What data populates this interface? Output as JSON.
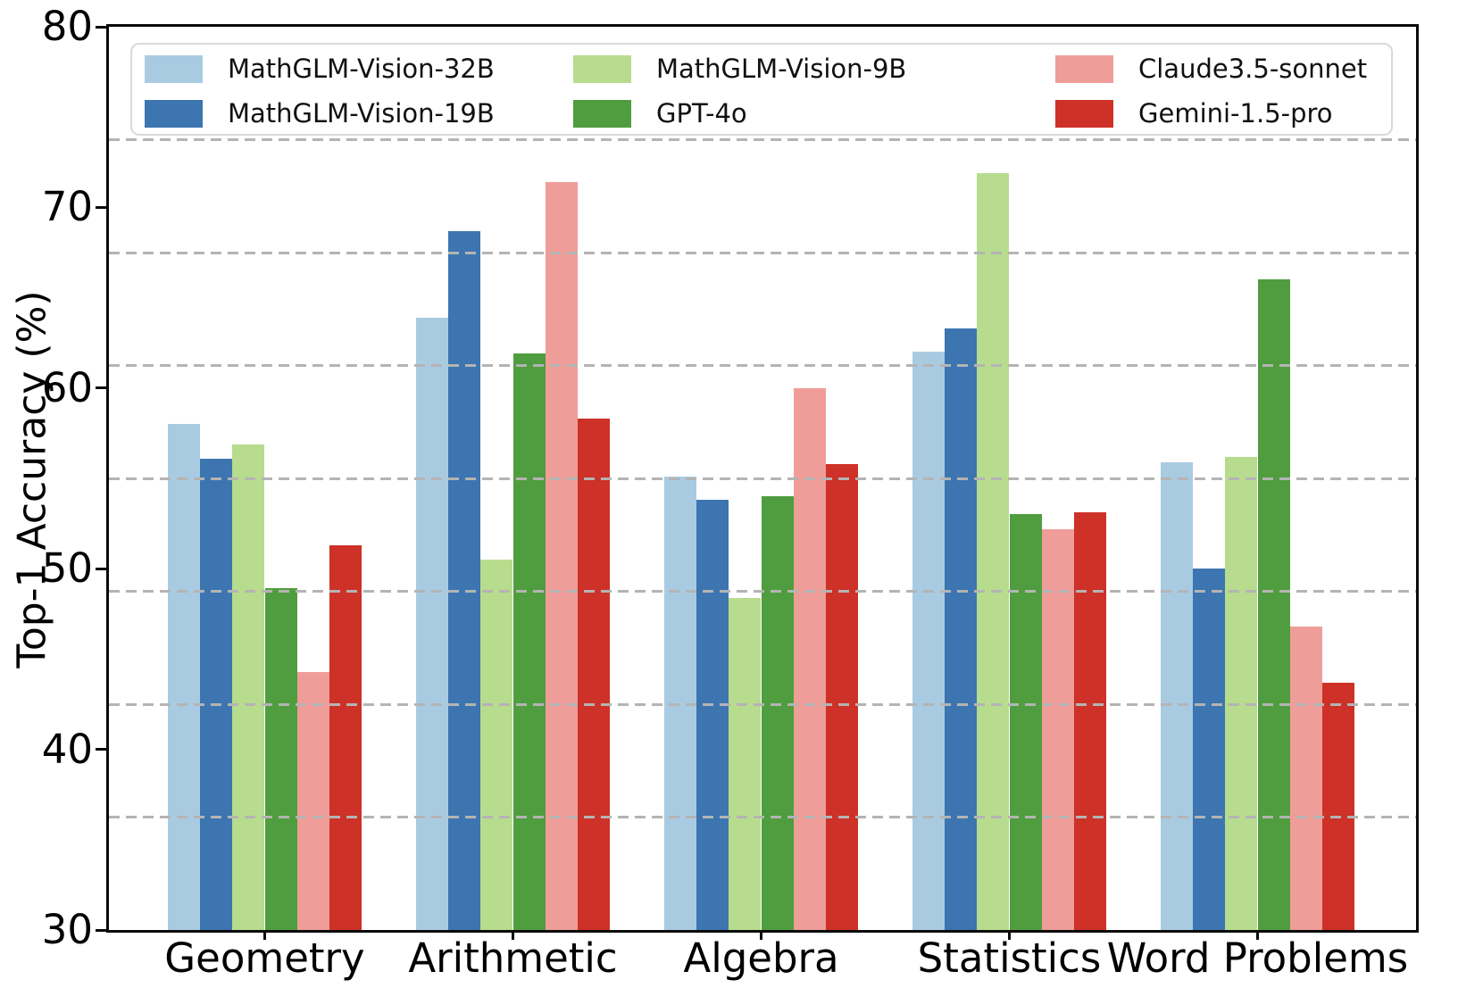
{
  "chart_data": {
    "type": "bar",
    "title": "",
    "xlabel": "",
    "ylabel": "Top-1 Accuracy (%)",
    "ylim": [
      30,
      80
    ],
    "yticks": [
      80,
      70,
      60,
      50,
      40,
      30
    ],
    "grid": "horizontal dashed gray lines drawn over bars at eighth-intervals of the y-range",
    "gridline_values": [
      73.75,
      67.5,
      61.25,
      55.0,
      48.75,
      42.5,
      36.25
    ],
    "legend_position": "upper center, 3 columns, 2 rows",
    "categories": [
      "Geometry",
      "Arithmetic",
      "Algebra",
      "Statistics",
      "Word Problems"
    ],
    "series": [
      {
        "name": "MathGLM-Vision-32B",
        "color": "#A9CBE2",
        "values": [
          58.0,
          63.9,
          55.1,
          62.0,
          55.9
        ]
      },
      {
        "name": "MathGLM-Vision-19B",
        "color": "#3C75B0",
        "values": [
          56.1,
          68.7,
          53.8,
          63.3,
          50.0
        ]
      },
      {
        "name": "MathGLM-Vision-9B",
        "color": "#B7DC8E",
        "values": [
          56.9,
          50.5,
          48.4,
          71.9,
          56.2
        ]
      },
      {
        "name": "GPT-4o",
        "color": "#4F9D3F",
        "values": [
          48.9,
          61.9,
          54.0,
          53.0,
          66.0
        ]
      },
      {
        "name": "Claude3.5-sonnet",
        "color": "#EF9D99",
        "values": [
          44.3,
          71.4,
          60.0,
          52.2,
          46.8
        ]
      },
      {
        "name": "Gemini-1.5-pro",
        "color": "#CD3128",
        "values": [
          51.3,
          58.3,
          55.8,
          53.1,
          43.7
        ]
      }
    ]
  }
}
